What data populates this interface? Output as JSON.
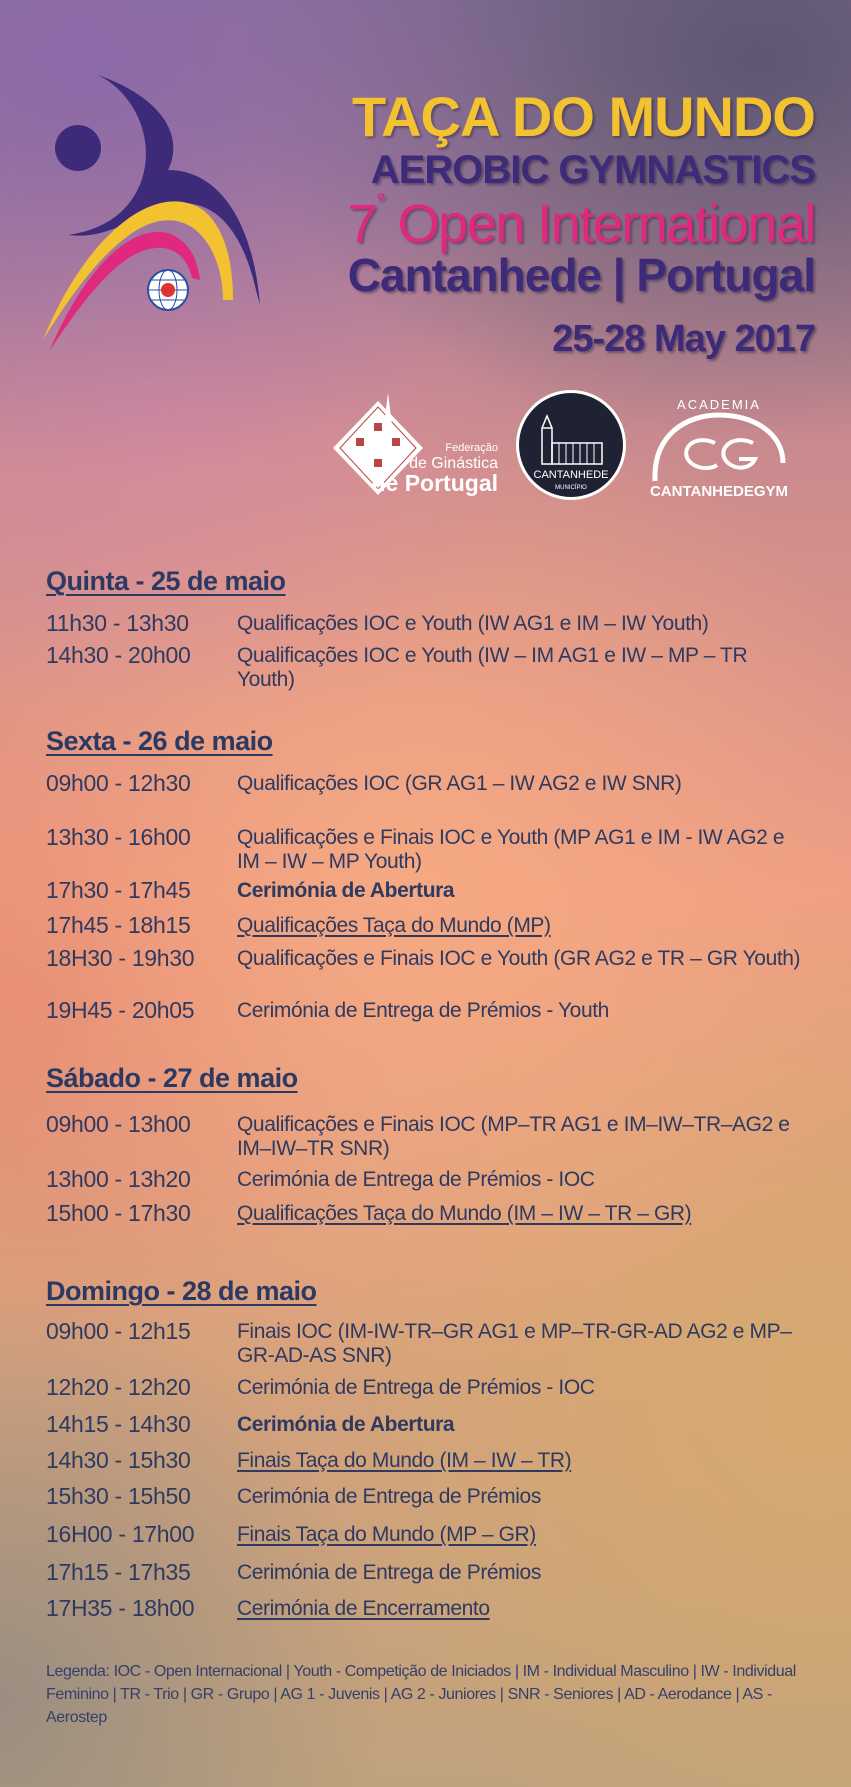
{
  "header": {
    "title": "TAÇA DO MUNDO",
    "subtitle": "AEROBIC GYMNASTICS",
    "edition_number": "7",
    "edition_sup": "°",
    "edition_text": " Open International",
    "location": "Cantanhede | Portugal",
    "dates": "25-28 May 2017"
  },
  "logos": {
    "fgp": {
      "line1": "Federação",
      "line2": "de Ginástica",
      "line3": "de Portugal"
    },
    "municipio": {
      "name": "CANTANHEDE",
      "sub": "MUNICÍPIO"
    },
    "academia": {
      "top": "ACADEMIA",
      "bottom": "CANTANHEDEGYM"
    },
    "fig_badge": "FIG"
  },
  "colors": {
    "title_yellow": "#f2c230",
    "purple": "#3d2a78",
    "pink": "#e0287f",
    "text_navy": "#2e3a60"
  },
  "schedule": [
    {
      "day": "Quinta - 25 de maio",
      "items": [
        {
          "time": "11h30 - 13h30",
          "desc": "Qualificações IOC e Youth (IW AG1 e IM – IW Youth)",
          "style": ""
        },
        {
          "time": "14h30 - 20h00",
          "desc": "Qualificações IOC e Youth (IW – IM AG1 e IW – MP – TR Youth)",
          "style": ""
        }
      ]
    },
    {
      "day": "Sexta - 26 de maio",
      "items": [
        {
          "time": "09h00 - 12h30",
          "desc": "Qualificações IOC (GR AG1 – IW AG2 e IW SNR)",
          "style": ""
        },
        {
          "time": "13h30 - 16h00",
          "desc": "Qualificações e Finais IOC e Youth (MP AG1 e IM - IW AG2 e IM – IW – MP Youth)",
          "style": ""
        },
        {
          "time": "17h30 - 17h45",
          "desc": "Cerimónia de Abertura",
          "style": "bold"
        },
        {
          "time": "17h45 - 18h15",
          "desc": "Qualificações Taça do Mundo (MP)",
          "style": "ul"
        },
        {
          "time": "18H30 - 19h30",
          "desc": "Qualificações e Finais IOC e Youth (GR AG2 e TR – GR Youth)",
          "style": ""
        },
        {
          "time": "19H45 - 20h05",
          "desc": "Cerimónia de Entrega de Prémios - Youth",
          "style": ""
        }
      ]
    },
    {
      "day": "Sábado - 27 de maio",
      "items": [
        {
          "time": "09h00 - 13h00",
          "desc": "Qualificações e Finais IOC (MP–TR AG1 e IM–IW–TR–AG2 e IM–IW–TR SNR)",
          "style": ""
        },
        {
          "time": "13h00 - 13h20",
          "desc": "Cerimónia de Entrega de Prémios - IOC",
          "style": ""
        },
        {
          "time": "15h00 - 17h30",
          "desc": "Qualificações Taça do Mundo (IM – IW – TR – GR)",
          "style": "ul"
        }
      ]
    },
    {
      "day": "Domingo - 28 de maio",
      "items": [
        {
          "time": "09h00 - 12h15",
          "desc": "Finais IOC (IM-IW-TR–GR AG1 e MP–TR-GR-AD AG2 e MP–GR-AD-AS SNR)",
          "style": ""
        },
        {
          "time": "12h20 - 12h20",
          "desc": "Cerimónia de Entrega de Prémios - IOC",
          "style": ""
        },
        {
          "time": "14h15 - 14h30",
          "desc": "Cerimónia de Abertura",
          "style": "bold"
        },
        {
          "time": "14h30 - 15h30",
          "desc": "Finais Taça do Mundo (IM – IW – TR)",
          "style": "ul"
        },
        {
          "time": "15h30 - 15h50",
          "desc": "Cerimónia de Entrega de Prémios",
          "style": ""
        },
        {
          "time": "16H00 - 17h00",
          "desc": "Finais Taça do Mundo (MP – GR)",
          "style": "ul"
        },
        {
          "time": "17h15 - 17h35",
          "desc": "Cerimónia de Entrega de Prémios",
          "style": ""
        },
        {
          "time": "17H35 - 18h00",
          "desc": "Cerimónia de Encerramento",
          "style": "ul"
        }
      ]
    }
  ],
  "legend": "Legenda: IOC - Open Internacional | Youth - Competição de Iniciados | IM - Individual Masculino | IW - Individual Feminino | TR - Trio | GR - Grupo | AG 1 - Juvenis | AG 2 - Juniores | SNR - Seniores | AD - Aerodance | AS - Aerostep"
}
